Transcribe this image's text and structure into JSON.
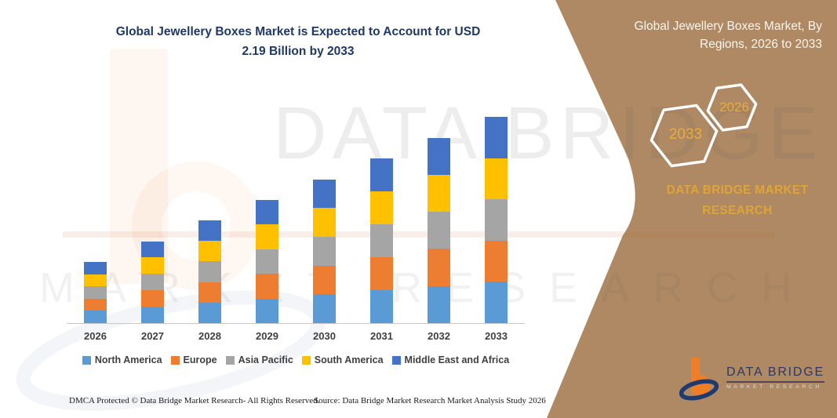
{
  "header": {
    "title_line1": "Global Jewellery Boxes Market is Expected to Account for USD",
    "title_line2": "2.19 Billion by 2033"
  },
  "panel": {
    "title_line1": "Global Jewellery Boxes Market, By",
    "title_line2": "Regions, 2026 to 2033",
    "hexagons": [
      {
        "label": "2033"
      },
      {
        "label": "2026"
      }
    ],
    "brand_line1": "DATA BRIDGE MARKET",
    "brand_line2": "RESEARCH",
    "background_color": "#AE8963",
    "gold_color": "#E2A63B"
  },
  "logo": {
    "name": "DATA BRIDGE",
    "subtitle": "MARKET RESEARCH"
  },
  "watermark": {
    "row1": "DATA BRIDGE",
    "row2": "MARKET RESEARCH"
  },
  "footer": {
    "left": "DMCA Protected © Data Bridge Market Research- All Rights Reserved.",
    "right": "Source: Data Bridge Market Research Market Analysis Study 2026"
  },
  "chart_data": {
    "type": "bar",
    "stacked": true,
    "title": "Global Jewellery Boxes Market is Expected to Account for USD 2.19 Billion by 2033",
    "unit": "USD Billion",
    "categories": [
      "2026",
      "2027",
      "2028",
      "2029",
      "2030",
      "2031",
      "2032",
      "2033"
    ],
    "series": [
      {
        "name": "North America",
        "color": "#5B9BD5",
        "values": [
          0.13,
          0.174,
          0.218,
          0.262,
          0.306,
          0.35,
          0.394,
          0.438
        ]
      },
      {
        "name": "Europe",
        "color": "#ED7D31",
        "values": [
          0.13,
          0.174,
          0.218,
          0.262,
          0.306,
          0.35,
          0.394,
          0.438
        ]
      },
      {
        "name": "Asia Pacific",
        "color": "#A5A5A5",
        "values": [
          0.13,
          0.174,
          0.218,
          0.262,
          0.306,
          0.35,
          0.394,
          0.438
        ]
      },
      {
        "name": "South America",
        "color": "#FFC000",
        "values": [
          0.13,
          0.174,
          0.218,
          0.262,
          0.306,
          0.35,
          0.394,
          0.438
        ]
      },
      {
        "name": "Middle East and Africa",
        "color": "#4472C4",
        "values": [
          0.13,
          0.174,
          0.218,
          0.262,
          0.306,
          0.35,
          0.394,
          0.438
        ]
      }
    ],
    "totals": [
      0.65,
      0.87,
      1.09,
      1.31,
      1.53,
      1.75,
      1.97,
      2.19
    ],
    "xlabel": "",
    "ylabel": "",
    "ylim": [
      0,
      2.3
    ],
    "gridlines": false,
    "legend_position": "bottom"
  }
}
